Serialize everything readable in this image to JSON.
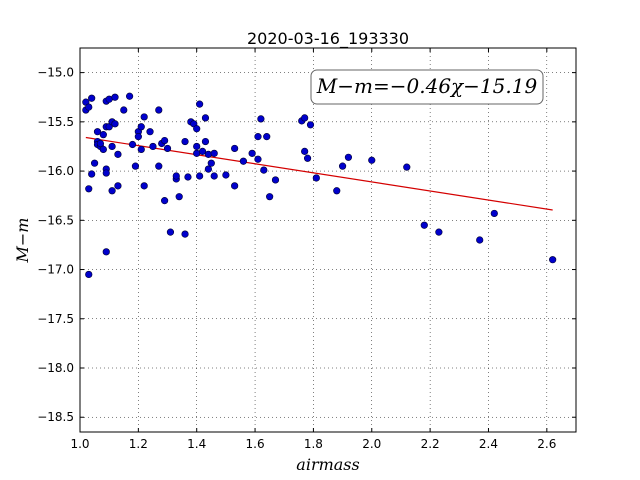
{
  "chart_data": {
    "type": "scatter",
    "title": "2020-03-16_193330",
    "xlabel": "airmass",
    "ylabel": "M−m",
    "xlim": [
      1.0,
      2.7
    ],
    "ylim": [
      -18.65,
      -14.75
    ],
    "xticks": [
      1.0,
      1.2,
      1.4,
      1.6,
      1.8,
      2.0,
      2.2,
      2.4,
      2.6
    ],
    "yticks": [
      -15.0,
      -15.5,
      -16.0,
      -16.5,
      -17.0,
      -17.5,
      -18.0,
      -18.5
    ],
    "xtick_labels": [
      "1.0",
      "1.2",
      "1.4",
      "1.6",
      "1.8",
      "2.0",
      "2.2",
      "2.4",
      "2.6"
    ],
    "ytick_labels": [
      "−15.0",
      "−15.5",
      "−16.0",
      "−16.5",
      "−17.0",
      "−17.5",
      "−18.0",
      "−18.5"
    ],
    "grid": true,
    "annotation": "M−m=−0.46χ−15.19",
    "annotation_position": "top-right",
    "fit": {
      "slope": -0.46,
      "intercept": -15.19,
      "x_range": [
        1.02,
        2.62
      ],
      "color": "#d40000"
    },
    "marker_color": "#0000cc",
    "points": [
      [
        1.02,
        -15.3
      ],
      [
        1.02,
        -15.38
      ],
      [
        1.03,
        -15.35
      ],
      [
        1.04,
        -15.26
      ],
      [
        1.03,
        -16.18
      ],
      [
        1.04,
        -16.03
      ],
      [
        1.03,
        -17.05
      ],
      [
        1.05,
        -15.92
      ],
      [
        1.06,
        -15.6
      ],
      [
        1.06,
        -15.7
      ],
      [
        1.06,
        -15.73
      ],
      [
        1.07,
        -15.75
      ],
      [
        1.07,
        -15.72
      ],
      [
        1.08,
        -15.63
      ],
      [
        1.08,
        -15.78
      ],
      [
        1.09,
        -15.29
      ],
      [
        1.09,
        -15.55
      ],
      [
        1.1,
        -15.27
      ],
      [
        1.09,
        -15.98
      ],
      [
        1.09,
        -16.02
      ],
      [
        1.09,
        -16.82
      ],
      [
        1.1,
        -15.55
      ],
      [
        1.11,
        -15.75
      ],
      [
        1.11,
        -15.5
      ],
      [
        1.12,
        -15.52
      ],
      [
        1.12,
        -15.25
      ],
      [
        1.11,
        -16.2
      ],
      [
        1.13,
        -15.83
      ],
      [
        1.13,
        -16.15
      ],
      [
        1.15,
        -15.38
      ],
      [
        1.17,
        -15.24
      ],
      [
        1.18,
        -15.73
      ],
      [
        1.19,
        -15.95
      ],
      [
        1.2,
        -15.6
      ],
      [
        1.2,
        -15.65
      ],
      [
        1.21,
        -15.55
      ],
      [
        1.21,
        -15.78
      ],
      [
        1.22,
        -15.45
      ],
      [
        1.22,
        -16.15
      ],
      [
        1.24,
        -15.6
      ],
      [
        1.25,
        -15.75
      ],
      [
        1.27,
        -15.38
      ],
      [
        1.27,
        -15.95
      ],
      [
        1.28,
        -15.72
      ],
      [
        1.29,
        -15.69
      ],
      [
        1.29,
        -16.3
      ],
      [
        1.3,
        -15.77
      ],
      [
        1.31,
        -16.62
      ],
      [
        1.33,
        -16.08
      ],
      [
        1.33,
        -16.05
      ],
      [
        1.34,
        -16.26
      ],
      [
        1.36,
        -15.7
      ],
      [
        1.36,
        -16.64
      ],
      [
        1.37,
        -16.06
      ],
      [
        1.38,
        -15.5
      ],
      [
        1.39,
        -15.52
      ],
      [
        1.4,
        -15.57
      ],
      [
        1.4,
        -15.75
      ],
      [
        1.4,
        -15.82
      ],
      [
        1.41,
        -15.32
      ],
      [
        1.41,
        -16.05
      ],
      [
        1.42,
        -15.8
      ],
      [
        1.43,
        -15.46
      ],
      [
        1.43,
        -15.7
      ],
      [
        1.44,
        -15.98
      ],
      [
        1.44,
        -15.83
      ],
      [
        1.45,
        -15.92
      ],
      [
        1.46,
        -16.05
      ],
      [
        1.46,
        -15.82
      ],
      [
        1.5,
        -16.04
      ],
      [
        1.53,
        -16.15
      ],
      [
        1.53,
        -15.77
      ],
      [
        1.56,
        -15.9
      ],
      [
        1.59,
        -15.82
      ],
      [
        1.61,
        -15.65
      ],
      [
        1.61,
        -15.88
      ],
      [
        1.62,
        -15.47
      ],
      [
        1.63,
        -15.99
      ],
      [
        1.64,
        -15.65
      ],
      [
        1.65,
        -16.26
      ],
      [
        1.67,
        -16.09
      ],
      [
        1.76,
        -15.49
      ],
      [
        1.77,
        -15.46
      ],
      [
        1.77,
        -15.8
      ],
      [
        1.78,
        -15.87
      ],
      [
        1.79,
        -15.53
      ],
      [
        1.81,
        -16.07
      ],
      [
        1.88,
        -16.2
      ],
      [
        1.9,
        -15.95
      ],
      [
        1.92,
        -15.86
      ],
      [
        2.0,
        -15.89
      ],
      [
        2.12,
        -15.96
      ],
      [
        2.18,
        -16.55
      ],
      [
        2.23,
        -16.62
      ],
      [
        2.37,
        -16.7
      ],
      [
        2.42,
        -16.43
      ],
      [
        2.62,
        -16.9
      ]
    ]
  }
}
